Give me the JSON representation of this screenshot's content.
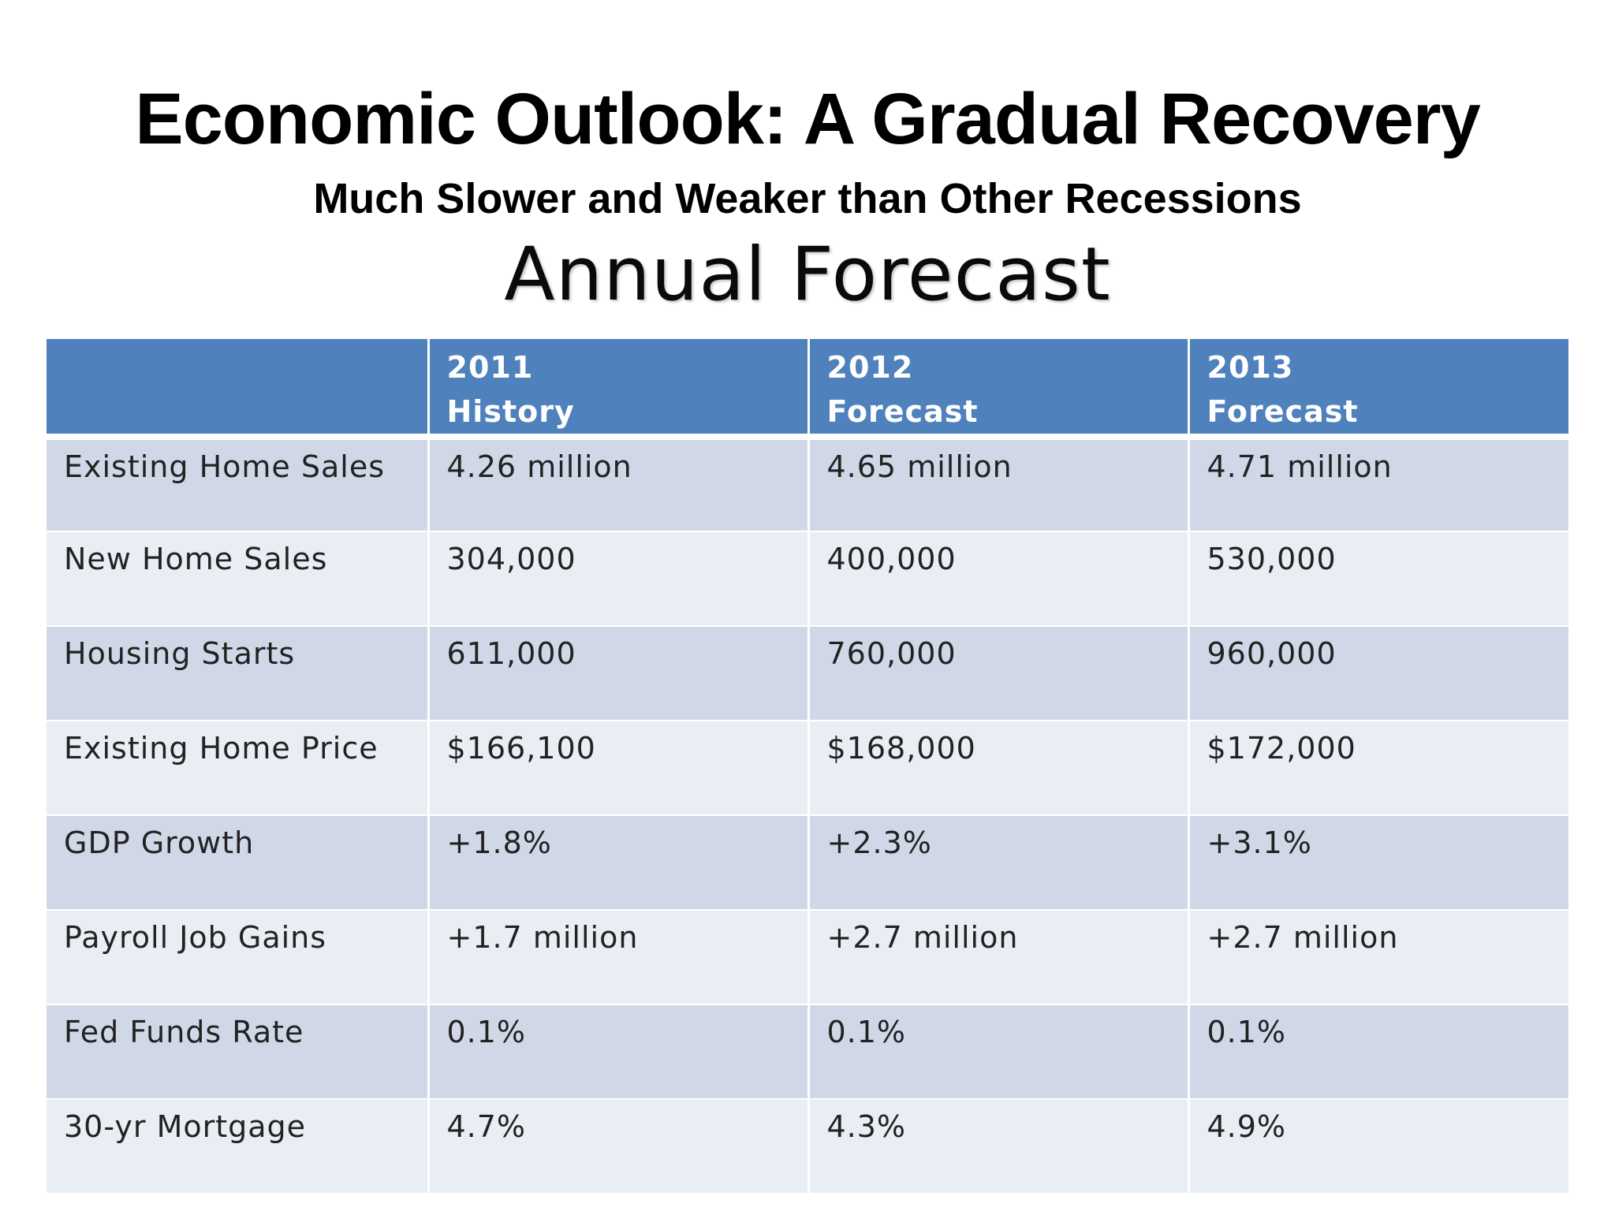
{
  "title": "Economic Outlook:  A Gradual Recovery",
  "subtitle": "Much Slower and Weaker than Other Recessions",
  "table_title": "Annual Forecast",
  "table": {
    "headers": [
      {
        "line1": "",
        "line2": ""
      },
      {
        "line1": "2011",
        "line2": "History"
      },
      {
        "line1": "2012",
        "line2": "Forecast"
      },
      {
        "line1": "2013",
        "line2": "Forecast"
      }
    ],
    "rows": [
      {
        "label": "Existing Home Sales",
        "values": [
          "4.26 million",
          "4.65 million",
          "4.71 million"
        ]
      },
      {
        "label": "New Home Sales",
        "values": [
          "304,000",
          "400,000",
          "530,000"
        ]
      },
      {
        "label": "Housing Starts",
        "values": [
          "611,000",
          "760,000",
          "960,000"
        ]
      },
      {
        "label": "Existing Home Price",
        "values": [
          "$166,100",
          "$168,000",
          "$172,000"
        ]
      },
      {
        "label": "GDP Growth",
        "values": [
          "+1.8%",
          "+2.3%",
          "+3.1%"
        ]
      },
      {
        "label": "Payroll Job Gains",
        "values": [
          "+1.7 million",
          "+2.7 million",
          "+2.7 million"
        ]
      },
      {
        "label": "Fed Funds Rate",
        "values": [
          "0.1%",
          "0.1%",
          "0.1%"
        ]
      },
      {
        "label": "30-yr Mortgage",
        "values": [
          "4.7%",
          "4.3%",
          "4.9%"
        ]
      }
    ]
  },
  "colors": {
    "header_bg": "#4f81bd",
    "row_odd_bg": "#d0d8e8",
    "row_even_bg": "#e9edf4"
  }
}
